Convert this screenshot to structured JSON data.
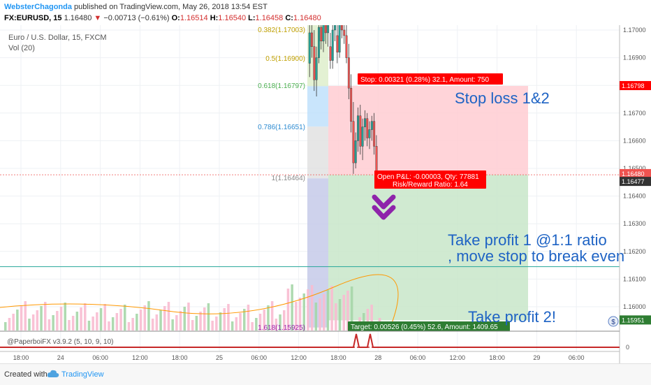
{
  "header": {
    "author": "WebsterChagonda",
    "published": "published on TradingView.com, May 26, 2018 13:54 EST",
    "symbol": "FX:EURUSD, 15",
    "price": "1.16480",
    "change": "−0.00713 (−0.61%)",
    "o_label": "O:",
    "o_value": "1.16514",
    "h_label": "H:",
    "h_value": "1.16540",
    "l_label": "L:",
    "l_value": "1.16458",
    "c_label": "C:",
    "c_value": "1.16480"
  },
  "legend": {
    "series": "Euro / U.S. Dollar, 15, FXCM",
    "volume": "Vol (20)"
  },
  "fib_labels": [
    {
      "text": "0.382(1.17003)",
      "y": 1.17003
    },
    {
      "text": "0.5(1.16900)",
      "y": 1.169
    },
    {
      "text": "0.618(1.16797)",
      "y": 1.16797
    },
    {
      "text": "0.786(1.16651)",
      "y": 1.16651
    },
    {
      "text": "1(1.16464)",
      "y": 1.16464
    },
    {
      "text": "1.618(1.15925)",
      "y": 1.15925
    }
  ],
  "position_labels": {
    "stop": "Stop: 0.00321 (0.28%) 32.1, Amount: 750",
    "open_pl": "Open P&L: -0.00003, Qty: 77881",
    "risk_reward": "Risk/Reward Ratio: 1.64",
    "target": "Target: 0.00526 (0.45%) 52.6, Amount: 1409.65"
  },
  "annotations": {
    "stop_loss": "Stop loss 1&2",
    "tp1_line1": "Take profit 1 @1:1 ratio",
    "tp1_line2": ", move stop to break even",
    "tp2": "Take profit 2!"
  },
  "indicator": {
    "label": "@PaperboiFX v3.9.2 (5, 10, 9, 10)",
    "zero": "0"
  },
  "footer": {
    "created_with": "Created with",
    "brand": "TradingView"
  },
  "colors": {
    "up": "#26a69a",
    "down": "#ef5350",
    "stop_zone": "#ffcdd2",
    "target_zone": "#c8e6c9",
    "label_red": "#ff0000",
    "label_green": "#2e7d32",
    "annotation_blue": "#1e63c4",
    "arrow_purple": "#8e24aa"
  },
  "chart_data": {
    "type": "candlestick",
    "y_ticks": [
      1.17,
      1.169,
      1.168,
      1.167,
      1.166,
      1.165,
      1.164,
      1.163,
      1.162,
      1.161,
      1.16
    ],
    "ylim": [
      1.15925,
      1.1707
    ],
    "x_ticks": [
      "18:00",
      "24",
      "06:00",
      "12:00",
      "18:00",
      "25",
      "06:00",
      "12:00",
      "18:00",
      "28",
      "06:00",
      "12:00",
      "18:00",
      "29",
      "06:00"
    ],
    "price_badges": [
      {
        "text": "1.16798",
        "value": 1.16798,
        "type": "stop"
      },
      {
        "text": "1.16480",
        "value": 1.1648,
        "type": "current"
      },
      {
        "text": "1.16477",
        "value": 1.16477,
        "type": "entry"
      },
      {
        "text": "1.15951",
        "value": 1.15951,
        "type": "target"
      }
    ],
    "entry": 1.16477,
    "stop": 1.16798,
    "target": 1.15951,
    "horizontal_line": 1.16145,
    "candles": [
      {
        "t": 0,
        "o": 1.1688,
        "h": 1.1702,
        "l": 1.1683,
        "c": 1.1699
      },
      {
        "t": 1,
        "o": 1.1699,
        "h": 1.1704,
        "l": 1.169,
        "c": 1.1694
      },
      {
        "t": 2,
        "o": 1.1694,
        "h": 1.17,
        "l": 1.1678,
        "c": 1.1682
      },
      {
        "t": 3,
        "o": 1.1682,
        "h": 1.1694,
        "l": 1.1676,
        "c": 1.169
      },
      {
        "t": 4,
        "o": 1.169,
        "h": 1.1703,
        "l": 1.1688,
        "c": 1.1701
      },
      {
        "t": 5,
        "o": 1.1701,
        "h": 1.1705,
        "l": 1.1693,
        "c": 1.1696
      },
      {
        "t": 6,
        "o": 1.1696,
        "h": 1.1704,
        "l": 1.1692,
        "c": 1.1702
      },
      {
        "t": 7,
        "o": 1.1702,
        "h": 1.1706,
        "l": 1.1695,
        "c": 1.1699
      },
      {
        "t": 8,
        "o": 1.1699,
        "h": 1.1705,
        "l": 1.1694,
        "c": 1.1703
      },
      {
        "t": 9,
        "o": 1.1694,
        "h": 1.1699,
        "l": 1.1686,
        "c": 1.1689
      },
      {
        "t": 10,
        "o": 1.1689,
        "h": 1.1702,
        "l": 1.1686,
        "c": 1.17
      },
      {
        "t": 11,
        "o": 1.17,
        "h": 1.1705,
        "l": 1.1696,
        "c": 1.1703
      },
      {
        "t": 12,
        "o": 1.1698,
        "h": 1.1705,
        "l": 1.1688,
        "c": 1.1692
      },
      {
        "t": 13,
        "o": 1.1692,
        "h": 1.1706,
        "l": 1.169,
        "c": 1.1705
      },
      {
        "t": 14,
        "o": 1.1705,
        "h": 1.1708,
        "l": 1.1697,
        "c": 1.17
      },
      {
        "t": 15,
        "o": 1.17,
        "h": 1.1707,
        "l": 1.1695,
        "c": 1.1698
      },
      {
        "t": 16,
        "o": 1.1698,
        "h": 1.1703,
        "l": 1.1688,
        "c": 1.169
      },
      {
        "t": 17,
        "o": 1.169,
        "h": 1.1695,
        "l": 1.1675,
        "c": 1.1679
      },
      {
        "t": 18,
        "o": 1.1679,
        "h": 1.1684,
        "l": 1.1663,
        "c": 1.1667
      },
      {
        "t": 19,
        "o": 1.1667,
        "h": 1.1674,
        "l": 1.1648,
        "c": 1.1652
      },
      {
        "t": 20,
        "o": 1.1652,
        "h": 1.1663,
        "l": 1.165,
        "c": 1.166
      },
      {
        "t": 21,
        "o": 1.166,
        "h": 1.1672,
        "l": 1.1656,
        "c": 1.1669
      },
      {
        "t": 22,
        "o": 1.1669,
        "h": 1.1673,
        "l": 1.1655,
        "c": 1.1658
      },
      {
        "t": 23,
        "o": 1.1658,
        "h": 1.1668,
        "l": 1.1653,
        "c": 1.1665
      },
      {
        "t": 24,
        "o": 1.1665,
        "h": 1.1671,
        "l": 1.166,
        "c": 1.1668
      },
      {
        "t": 25,
        "o": 1.1668,
        "h": 1.167,
        "l": 1.1658,
        "c": 1.1661
      },
      {
        "t": 26,
        "o": 1.1661,
        "h": 1.1667,
        "l": 1.1657,
        "c": 1.1664
      },
      {
        "t": 27,
        "o": 1.1664,
        "h": 1.1669,
        "l": 1.166,
        "c": 1.1667
      },
      {
        "t": 28,
        "o": 1.1667,
        "h": 1.167,
        "l": 1.1655,
        "c": 1.1658
      },
      {
        "t": 29,
        "o": 1.1658,
        "h": 1.1662,
        "l": 1.1646,
        "c": 1.1648
      }
    ]
  }
}
